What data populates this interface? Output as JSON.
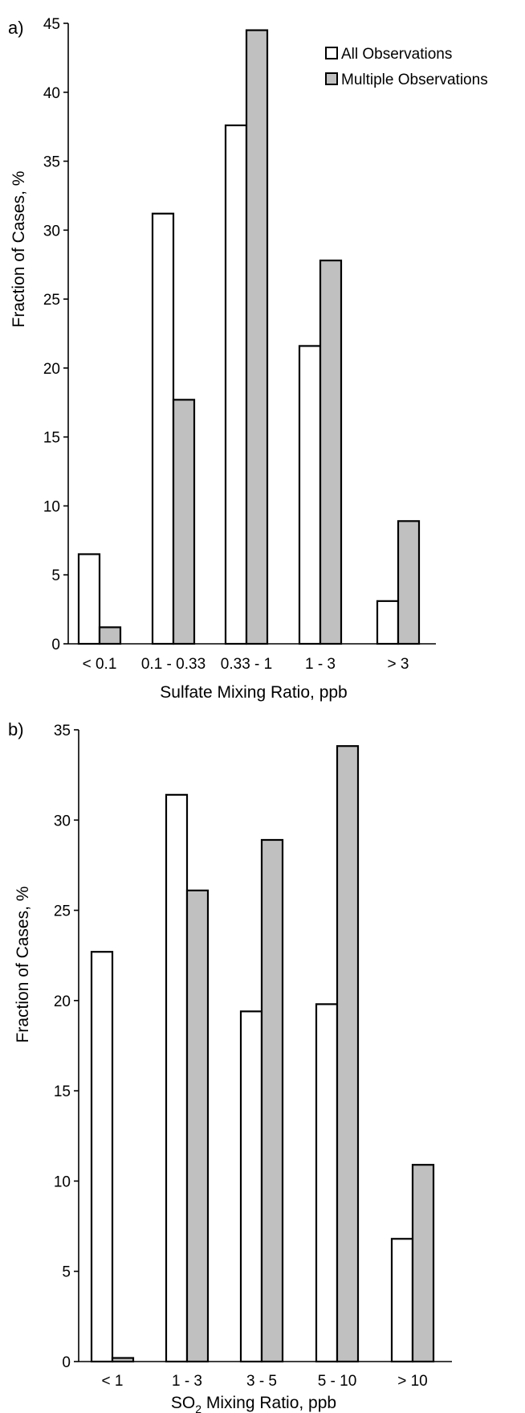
{
  "colors": {
    "all_observations": "#ffffff",
    "multiple_observations": "#c0c0c0",
    "stroke": "#000000"
  },
  "legend": {
    "items": [
      {
        "label": "All Observations",
        "color": "#ffffff"
      },
      {
        "label": "Multiple Observations",
        "color": "#c0c0c0"
      }
    ]
  },
  "chart_data": [
    {
      "type": "bar",
      "panel_label": "a)",
      "title": "",
      "xlabel": "Sulfate Mixing Ratio, ppb",
      "ylabel": "Fraction of Cases, %",
      "ylim": [
        0,
        45
      ],
      "yticks": [
        0,
        5,
        10,
        15,
        20,
        25,
        30,
        35,
        40,
        45
      ],
      "categories": [
        "< 0.1",
        "0.1 - 0.33",
        "0.33 - 1",
        "1 - 3",
        "> 3"
      ],
      "series": [
        {
          "name": "All Observations",
          "values": [
            6.5,
            31.2,
            37.6,
            21.6,
            3.1
          ]
        },
        {
          "name": "Multiple Observations",
          "values": [
            1.2,
            17.7,
            44.5,
            27.8,
            8.9
          ]
        }
      ],
      "legend_position": "top-right",
      "grid": false
    },
    {
      "type": "bar",
      "panel_label": "b)",
      "title": "",
      "xlabel_main": "SO",
      "xlabel_sub": "2",
      "xlabel_rest": " Mixing Ratio, ppb",
      "ylabel": "Fraction of Cases, %",
      "ylim": [
        0,
        35
      ],
      "yticks": [
        0,
        5,
        10,
        15,
        20,
        25,
        30,
        35
      ],
      "categories": [
        "< 1",
        "1 - 3",
        "3 - 5",
        "5 - 10",
        "> 10"
      ],
      "series": [
        {
          "name": "All Observations",
          "values": [
            22.7,
            31.4,
            19.4,
            19.8,
            6.8
          ]
        },
        {
          "name": "Multiple Observations",
          "values": [
            0.2,
            26.1,
            28.9,
            34.1,
            10.9
          ]
        }
      ],
      "grid": false
    }
  ]
}
